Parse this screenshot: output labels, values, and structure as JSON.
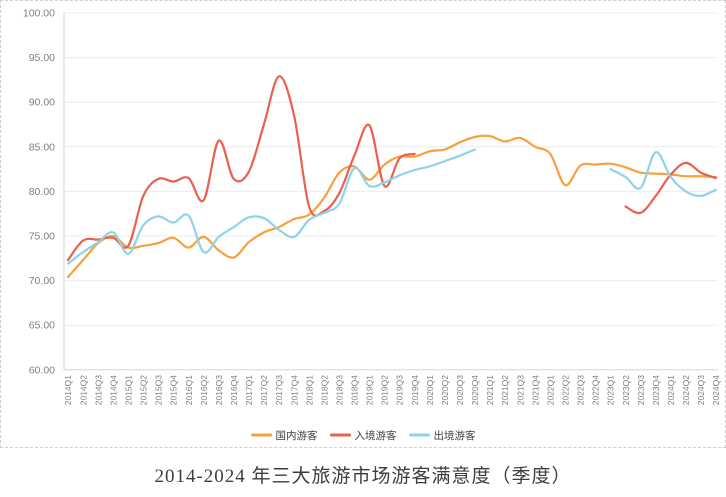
{
  "title": "2014-2024 年三大旅游市场游客满意度（季度）",
  "chart_data": {
    "type": "line",
    "title": "2014-2024 年三大旅游市场游客满意度（季度）",
    "grid": "horizontal",
    "legend_position": "bottom",
    "y_axis": {
      "min": 60,
      "max": 100,
      "step": 5,
      "tick_labels": [
        "100.00",
        "95.00",
        "90.00",
        "85.00",
        "80.00",
        "75.00",
        "70.00",
        "65.00",
        "60.00"
      ]
    },
    "x_categories": [
      "2014Q1",
      "2014Q2",
      "2014Q3",
      "2014Q4",
      "2015Q1",
      "2015Q2",
      "2015Q3",
      "2015Q4",
      "2016Q1",
      "2016Q2",
      "2016Q3",
      "2016Q4",
      "2017Q1",
      "2017Q2",
      "2017Q3",
      "2017Q4",
      "2018Q1",
      "2018Q2",
      "2018Q3",
      "2018Q4",
      "2019Q1",
      "2019Q2",
      "2019Q3",
      "2019Q4",
      "2020Q1",
      "2020Q2",
      "2020Q3",
      "2020Q4",
      "2021Q1",
      "2021Q2",
      "2021Q3",
      "2021Q4",
      "2022Q1",
      "2022Q2",
      "2022Q3",
      "2022Q4",
      "2023Q1",
      "2023Q2",
      "2023Q3",
      "2023Q4",
      "2024Q1",
      "2024Q2",
      "2024Q3",
      "2024Q4"
    ],
    "series": [
      {
        "name": "国内游客",
        "color": "#F7A13C",
        "values": [
          70.4,
          72.3,
          74.2,
          75.0,
          73.7,
          73.9,
          74.2,
          74.8,
          73.7,
          74.9,
          73.4,
          72.6,
          74.3,
          75.4,
          76.0,
          76.9,
          77.4,
          79.3,
          82.1,
          82.8,
          81.3,
          83.0,
          83.9,
          83.9,
          84.5,
          84.7,
          85.5,
          86.1,
          86.2,
          85.6,
          86.0,
          85.0,
          84.2,
          80.7,
          82.9,
          83.0,
          83.1,
          82.7,
          82.1,
          82.0,
          81.9,
          81.7,
          81.7,
          81.6
        ]
      },
      {
        "name": "入境游客",
        "color": "#E8614F",
        "values": [
          72.3,
          74.5,
          74.6,
          74.8,
          73.9,
          79.5,
          81.4,
          81.1,
          81.5,
          79.0,
          85.7,
          81.4,
          82.2,
          87.5,
          92.9,
          88.5,
          78.3,
          77.8,
          79.8,
          84.0,
          87.4,
          80.6,
          83.7,
          84.2,
          null,
          null,
          null,
          null,
          null,
          null,
          null,
          null,
          null,
          null,
          null,
          null,
          null,
          78.3,
          77.6,
          79.5,
          81.9,
          83.2,
          82.1,
          81.5
        ]
      },
      {
        "name": "出境游客",
        "color": "#8ED3EA",
        "values": [
          71.9,
          73.2,
          74.3,
          75.4,
          73.0,
          76.2,
          77.2,
          76.5,
          77.3,
          73.2,
          74.9,
          76.0,
          77.1,
          77.0,
          75.7,
          74.9,
          76.8,
          77.6,
          78.6,
          82.6,
          80.6,
          81.0,
          81.8,
          82.4,
          82.8,
          83.4,
          84.0,
          84.7,
          null,
          null,
          null,
          null,
          null,
          null,
          null,
          null,
          82.5,
          81.6,
          80.4,
          84.4,
          81.6,
          80.0,
          79.5,
          80.2
        ]
      }
    ]
  }
}
